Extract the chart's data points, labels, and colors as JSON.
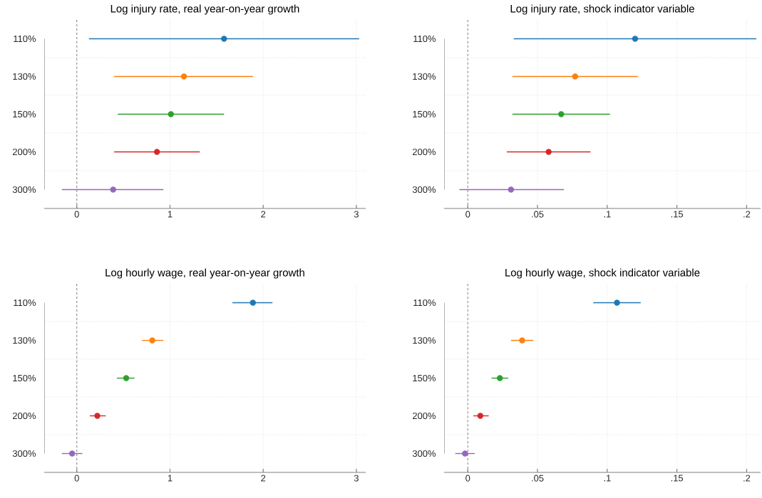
{
  "chart_data": [
    {
      "type": "scatter",
      "orientation": "horizontal",
      "title": "Log injury rate, real year-on-year growth",
      "categories": [
        "110%",
        "130%",
        "150%",
        "200%",
        "300%"
      ],
      "values": [
        1.58,
        1.15,
        1.01,
        0.86,
        0.39
      ],
      "errors": [
        [
          0.13,
          3.03
        ],
        [
          0.4,
          1.89
        ],
        [
          0.44,
          1.58
        ],
        [
          0.4,
          1.32
        ],
        [
          -0.16,
          0.93
        ]
      ],
      "colors": [
        "#1f77b4",
        "#ff7f0e",
        "#2ca02c",
        "#d62728",
        "#9467bd"
      ],
      "marker": "circle",
      "xlim": [
        -0.35,
        3.1
      ],
      "xticks": [
        0,
        1,
        2,
        3
      ],
      "grid": true,
      "ref_lines": [
        {
          "axis": "x",
          "value": 0,
          "color": "#808080",
          "line_style": "dashed"
        }
      ]
    },
    {
      "type": "scatter",
      "orientation": "horizontal",
      "title": "Log injury rate, shock indicator variable",
      "categories": [
        "110%",
        "130%",
        "150%",
        "200%",
        "300%"
      ],
      "values": [
        0.12,
        0.077,
        0.067,
        0.058,
        0.031
      ],
      "errors": [
        [
          0.033,
          0.207
        ],
        [
          0.032,
          0.122
        ],
        [
          0.032,
          0.102
        ],
        [
          0.028,
          0.088
        ],
        [
          -0.006,
          0.069
        ]
      ],
      "colors": [
        "#1f77b4",
        "#ff7f0e",
        "#2ca02c",
        "#d62728",
        "#9467bd"
      ],
      "marker": "circle",
      "xlim": [
        -0.017,
        0.21
      ],
      "xticks": [
        0,
        {
          "value": 0.05,
          "label": ".05"
        },
        {
          "value": 0.1,
          "label": ".1"
        },
        {
          "value": 0.15,
          "label": ".15"
        },
        {
          "value": 0.2,
          "label": ".2"
        }
      ],
      "grid": true,
      "ref_lines": [
        {
          "axis": "x",
          "value": 0,
          "color": "#808080",
          "line_style": "dashed"
        }
      ]
    },
    {
      "type": "scatter",
      "orientation": "horizontal",
      "title": "Log hourly wage, real year-on-year growth",
      "categories": [
        "110%",
        "130%",
        "150%",
        "200%",
        "300%"
      ],
      "values": [
        1.89,
        0.81,
        0.53,
        0.22,
        -0.05
      ],
      "errors": [
        [
          1.67,
          2.1
        ],
        [
          0.7,
          0.93
        ],
        [
          0.43,
          0.62
        ],
        [
          0.14,
          0.31
        ],
        [
          -0.16,
          0.06
        ]
      ],
      "colors": [
        "#1f77b4",
        "#ff7f0e",
        "#2ca02c",
        "#d62728",
        "#9467bd"
      ],
      "marker": "circle",
      "xlim": [
        -0.35,
        3.1
      ],
      "xticks": [
        0,
        1,
        2,
        3
      ],
      "grid": true,
      "ref_lines": [
        {
          "axis": "x",
          "value": 0,
          "color": "#808080",
          "line_style": "dashed"
        }
      ]
    },
    {
      "type": "scatter",
      "orientation": "horizontal",
      "title": "Log hourly wage, shock indicator variable",
      "categories": [
        "110%",
        "130%",
        "150%",
        "200%",
        "300%"
      ],
      "values": [
        0.107,
        0.039,
        0.023,
        0.009,
        -0.002
      ],
      "errors": [
        [
          0.09,
          0.124
        ],
        [
          0.031,
          0.047
        ],
        [
          0.017,
          0.029
        ],
        [
          0.004,
          0.015
        ],
        [
          -0.009,
          0.005
        ]
      ],
      "colors": [
        "#1f77b4",
        "#ff7f0e",
        "#2ca02c",
        "#d62728",
        "#9467bd"
      ],
      "marker": "circle",
      "xlim": [
        -0.017,
        0.21
      ],
      "xticks": [
        0,
        {
          "value": 0.05,
          "label": ".05"
        },
        {
          "value": 0.1,
          "label": ".1"
        },
        {
          "value": 0.15,
          "label": ".15"
        },
        {
          "value": 0.2,
          "label": ".2"
        }
      ],
      "grid": true,
      "ref_lines": [
        {
          "axis": "x",
          "value": 0,
          "color": "#808080",
          "line_style": "dashed"
        }
      ]
    }
  ]
}
